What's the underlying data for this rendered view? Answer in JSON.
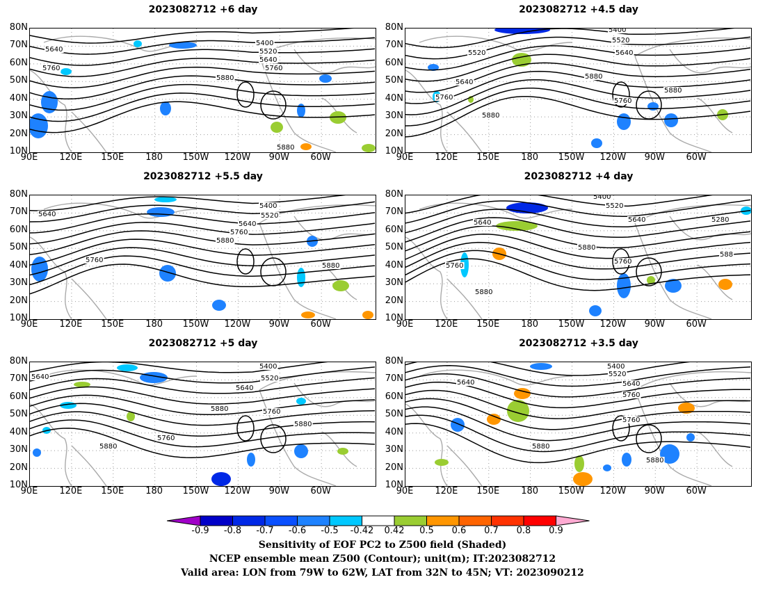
{
  "panels": [
    {
      "title": "2023082712  +6 day"
    },
    {
      "title": "2023082712  +4.5 day"
    },
    {
      "title": "2023082712  +5.5 day"
    },
    {
      "title": "2023082712  +4 day"
    },
    {
      "title": "2023082712  +5 day"
    },
    {
      "title": "2023082712  +3.5 day"
    }
  ],
  "axes": {
    "lat_labels": [
      "80N",
      "70N",
      "60N",
      "50N",
      "40N",
      "30N",
      "20N",
      "10N"
    ],
    "lon_labels": [
      "90E",
      "120E",
      "150E",
      "180",
      "150W",
      "120W",
      "90W",
      "60W"
    ]
  },
  "contour_labels": {
    "p0": [
      "5640",
      "5760",
      "5400",
      "5520",
      "5640",
      "5760",
      "5880",
      "5880"
    ],
    "p1": [
      "5400",
      "5520",
      "5640",
      "5520",
      "5640",
      "5760",
      "5880",
      "5880",
      "5760",
      "5880"
    ],
    "p2": [
      "5640",
      "5400",
      "5520",
      "5640",
      "5760",
      "5880",
      "5760",
      "5880"
    ],
    "p3": [
      "5400",
      "5520",
      "5640",
      "5280",
      "5640",
      "5880",
      "5760",
      "5760",
      "5880",
      "588"
    ],
    "p4": [
      "5640",
      "5400",
      "5520",
      "5640",
      "5880",
      "5760",
      "5880",
      "5760",
      "5880"
    ],
    "p5": [
      "5400",
      "5520",
      "5640",
      "5640",
      "5760",
      "5880",
      "5760",
      "5880"
    ]
  },
  "colorbar": {
    "ticks": [
      "-0.9",
      "-0.8",
      "-0.7",
      "-0.6",
      "-0.5",
      "-0.42",
      "0.42",
      "0.5",
      "0.6",
      "0.7",
      "0.8",
      "0.9"
    ],
    "colors": [
      "#a000c8",
      "#0000c8",
      "#0028e6",
      "#0a50ff",
      "#1e82ff",
      "#00c8ff",
      "#ffffff",
      "#9acd32",
      "#ff9600",
      "#ff6400",
      "#ff3200",
      "#ff0000",
      "#ffaad2"
    ]
  },
  "captions": {
    "line1": "Sensitivity of EOF PC2 to Z500 field (Shaded)",
    "line2": "NCEP ensemble mean Z500 (Contour); unit(m); IT:2023082712",
    "line3": "Valid area: LON from 79W to 62W, LAT from 32N to 45N; VT: 2023090212"
  }
}
